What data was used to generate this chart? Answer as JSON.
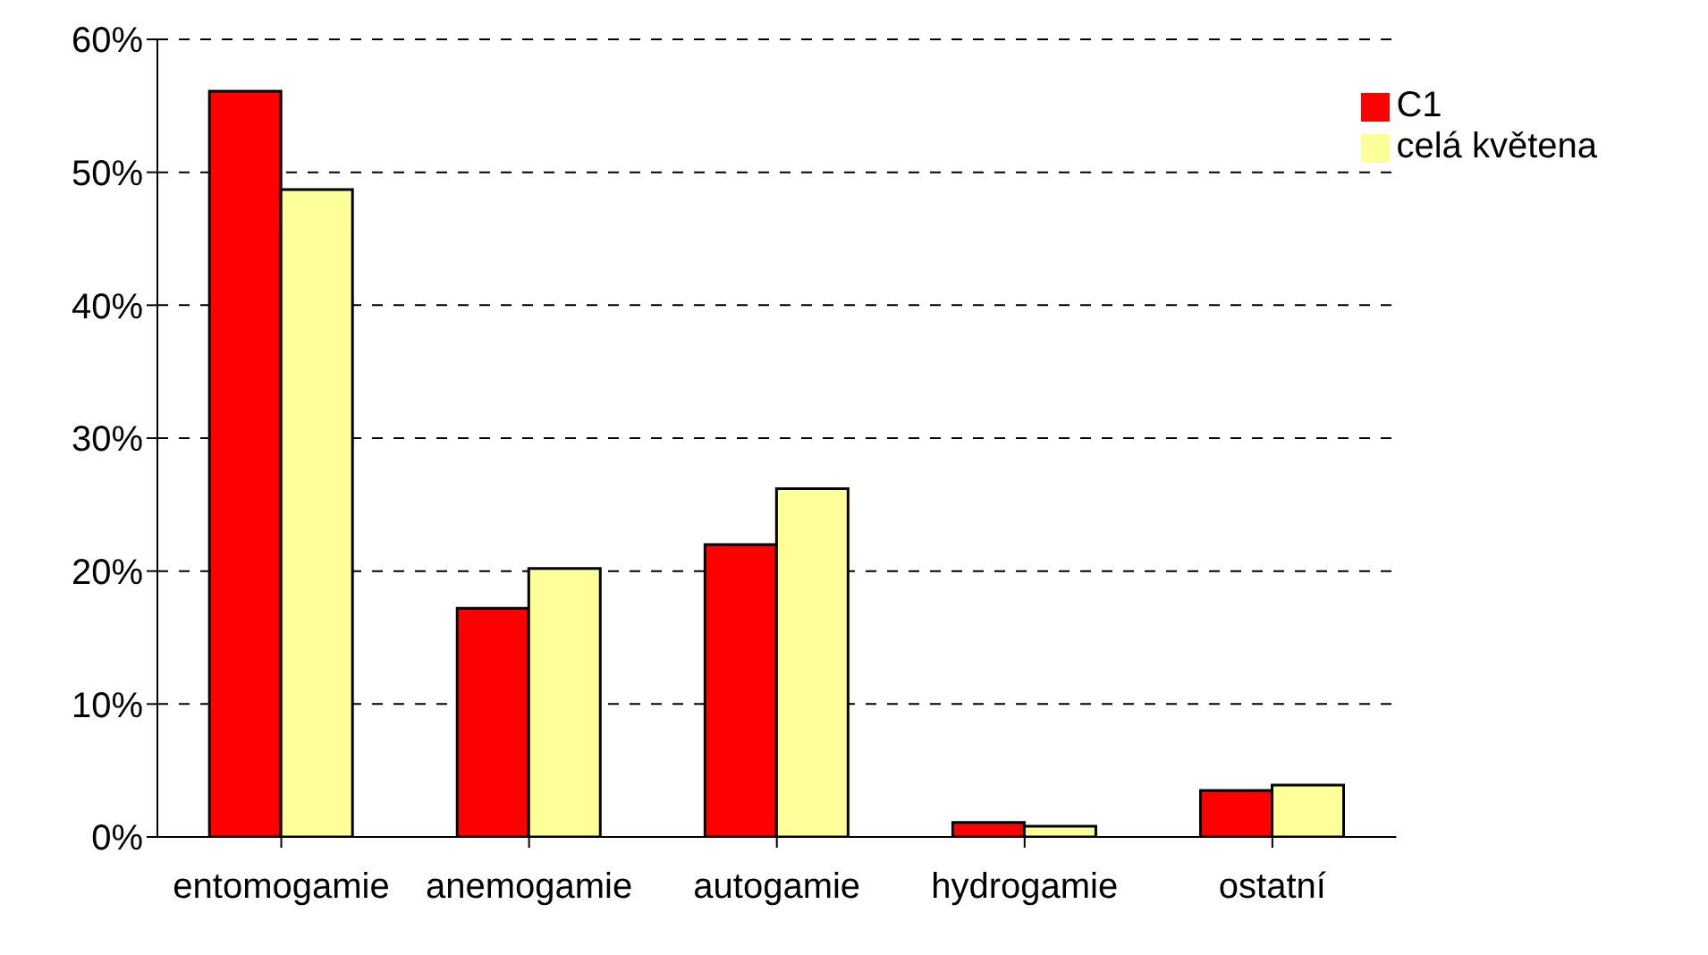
{
  "chart_data": {
    "type": "bar",
    "categories": [
      "entomogamie",
      "anemogamie",
      "autogamie",
      "hydrogamie",
      "ostatní"
    ],
    "series": [
      {
        "name": "C1",
        "color": "#ff0000",
        "values": [
          56.1,
          17.2,
          22.0,
          1.1,
          3.5
        ]
      },
      {
        "name": "celá květena",
        "color": "#ffff99",
        "values": [
          48.7,
          20.2,
          26.2,
          0.8,
          3.9
        ]
      }
    ],
    "ylim": [
      0,
      60
    ],
    "yticks": [
      {
        "value": 0,
        "label": "0%"
      },
      {
        "value": 10,
        "label": "10%"
      },
      {
        "value": 20,
        "label": "20%"
      },
      {
        "value": 30,
        "label": "30%"
      },
      {
        "value": 40,
        "label": "40%"
      },
      {
        "value": 50,
        "label": "50%"
      },
      {
        "value": 60,
        "label": "60%"
      }
    ],
    "grid": "y",
    "legend": "top right"
  }
}
